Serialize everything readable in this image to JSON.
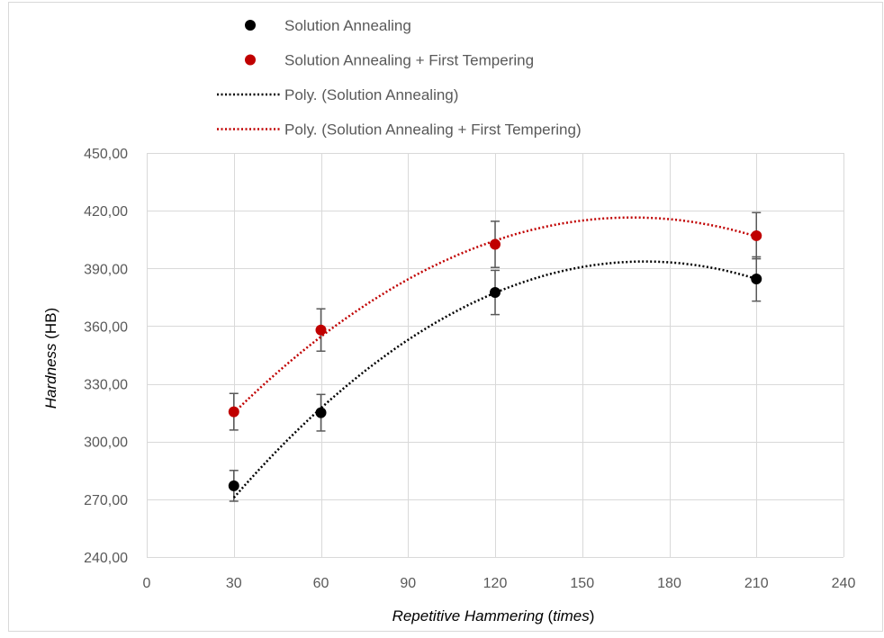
{
  "chart_data": {
    "type": "scatter",
    "title": "",
    "xlabel": {
      "main": "Repetitive Hammering",
      "unit": "times"
    },
    "ylabel": {
      "main": "Hardness",
      "unit": "HB"
    },
    "xlim": [
      0,
      240
    ],
    "ylim": [
      240,
      450
    ],
    "x_ticks": [
      "0",
      "30",
      "60",
      "90",
      "120",
      "150",
      "180",
      "210",
      "240"
    ],
    "y_ticks": [
      "240,00",
      "270,00",
      "300,00",
      "330,00",
      "360,00",
      "390,00",
      "420,00",
      "450,00"
    ],
    "grid": true,
    "legend_position": "top",
    "series": [
      {
        "name": "Solution Annealing",
        "color": "#000000",
        "x": [
          30,
          60,
          120,
          210
        ],
        "y": [
          277,
          315,
          377.5,
          384.5
        ],
        "error": [
          8,
          9.5,
          11.5,
          11.5
        ]
      },
      {
        "name": "Solution Annealing + First Tempering",
        "color": "#c00000",
        "x": [
          30,
          60,
          120,
          210
        ],
        "y": [
          315.5,
          358,
          402.5,
          407
        ],
        "error": [
          9.5,
          11,
          12,
          12
        ]
      }
    ],
    "trendlines": [
      {
        "name": "Poly. (Solution Annealing)",
        "color": "#000000",
        "x": [
          30,
          60,
          120,
          210
        ],
        "y": [
          271,
          317,
          377.5,
          384.5
        ]
      },
      {
        "name": "Poly. (Solution Annealing + First Tempering)",
        "color": "#c00000",
        "x": [
          30,
          60,
          120,
          210
        ],
        "y": [
          313,
          358,
          402.5,
          407
        ]
      }
    ]
  }
}
